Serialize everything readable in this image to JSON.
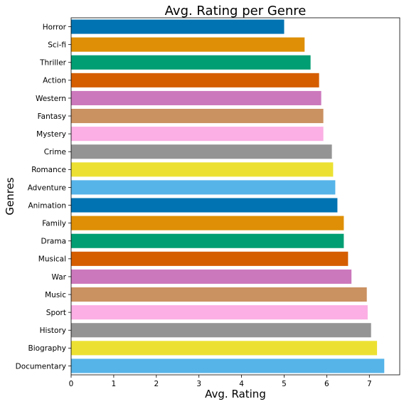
{
  "chart_data": {
    "type": "bar",
    "orientation": "horizontal",
    "title": "Avg. Rating per Genre",
    "xlabel": "Avg. Rating",
    "ylabel": "Genres",
    "xlim": [
      0,
      7.5
    ],
    "xticks": [
      0,
      1,
      2,
      3,
      4,
      5,
      6,
      7
    ],
    "grid": false,
    "categories": [
      "Horror",
      "Sci-fi",
      "Thriller",
      "Action",
      "Western",
      "Fantasy",
      "Mystery",
      "Crime",
      "Romance",
      "Adventure",
      "Animation",
      "Family",
      "Drama",
      "Musical",
      "War",
      "Music",
      "Sport",
      "History",
      "Biography",
      "Documentary"
    ],
    "values": [
      5.0,
      5.48,
      5.62,
      5.82,
      5.87,
      5.92,
      5.92,
      6.12,
      6.15,
      6.2,
      6.25,
      6.4,
      6.4,
      6.5,
      6.58,
      6.94,
      6.96,
      7.04,
      7.18,
      7.35
    ],
    "colors": [
      "#0173b2",
      "#de8f05",
      "#029e73",
      "#d55e00",
      "#cc78bc",
      "#ca9161",
      "#fbafe4",
      "#949494",
      "#ece133",
      "#56b4e9",
      "#0173b2",
      "#de8f05",
      "#029e73",
      "#d55e00",
      "#cc78bc",
      "#ca9161",
      "#fbafe4",
      "#949494",
      "#ece133",
      "#56b4e9"
    ]
  }
}
